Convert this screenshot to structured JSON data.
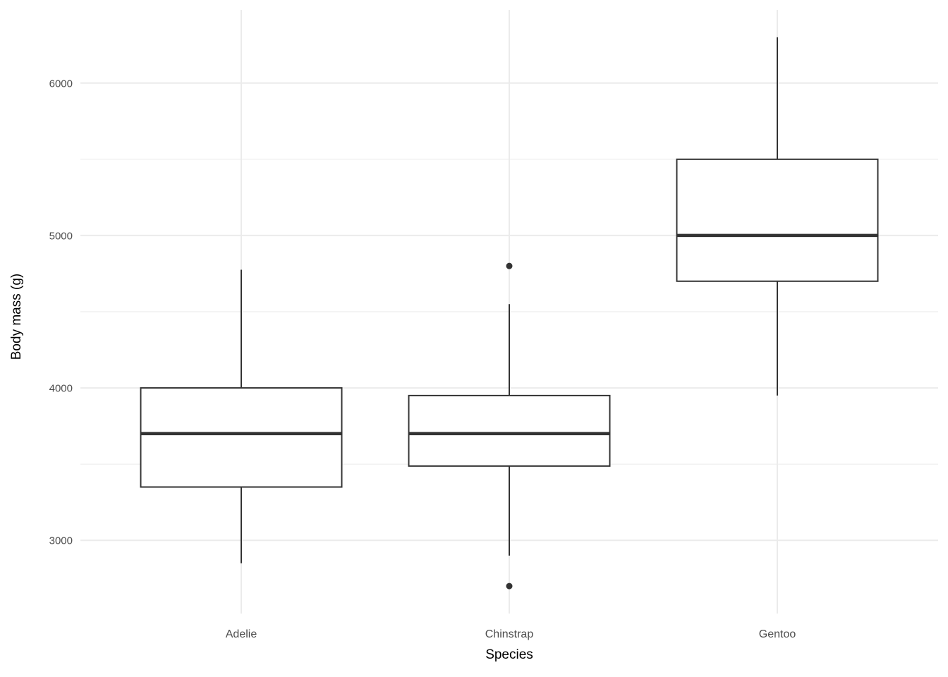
{
  "chart_data": {
    "type": "boxplot",
    "title": "",
    "xlabel": "Species",
    "ylabel": "Body mass (g)",
    "categories": [
      "Adelie",
      "Chinstrap",
      "Gentoo"
    ],
    "series": [
      {
        "name": "Adelie",
        "whisker_low": 2850,
        "q1": 3350,
        "median": 3700,
        "q3": 4000,
        "whisker_high": 4775,
        "outliers": []
      },
      {
        "name": "Chinstrap",
        "whisker_low": 2900,
        "q1": 3487.5,
        "median": 3700,
        "q3": 3950,
        "whisker_high": 4550,
        "outliers": [
          2700,
          4800
        ]
      },
      {
        "name": "Gentoo",
        "whisker_low": 3950,
        "q1": 4700,
        "median": 5000,
        "q3": 5500,
        "whisker_high": 6300,
        "outliers": []
      }
    ],
    "y_axis": {
      "tick_labels": [
        "3000",
        "4000",
        "5000",
        "6000"
      ],
      "ticks": [
        3000,
        4000,
        5000,
        6000
      ],
      "minor_ticks": [
        3500,
        4500,
        5500
      ],
      "range": [
        2520,
        6480
      ]
    },
    "grid": "on",
    "legend": "none",
    "style": {
      "box_stroke": "#333333",
      "box_fill": "#ffffff",
      "outlier_fill": "#333333",
      "grid_major": "#ebebeb",
      "grid_minor": "#f1f1f1",
      "tick_label_color": "#4d4d4d",
      "axis_title_color": "#000000",
      "background": "#ffffff"
    }
  }
}
